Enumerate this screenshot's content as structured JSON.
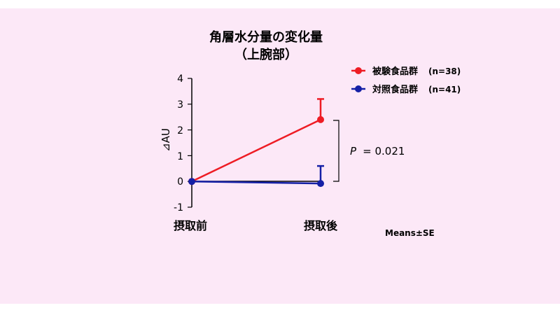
{
  "chart_data": {
    "type": "line",
    "title": "角層水分量の変化量",
    "subtitle": "（上腕部）",
    "ylabel": "⊿AU",
    "categories": [
      "摂取前",
      "摂取後"
    ],
    "ylim": [
      -1,
      4
    ],
    "yticks": [
      "4",
      "3",
      "2",
      "1",
      "0",
      "-1"
    ],
    "series": [
      {
        "name": "被験食品群",
        "n_label": "(n=38)",
        "values": [
          0,
          2.4
        ],
        "error": [
          0,
          0.8
        ],
        "color": "#ee1c24"
      },
      {
        "name": "対照食品群",
        "n_label": "(n=41)",
        "values": [
          0,
          -0.08
        ],
        "error": [
          0,
          0.68
        ],
        "color": "#1520a6"
      }
    ],
    "annotation_p_symbol": "P",
    "annotation_p_value": "= 0.021",
    "note": "Means±SE",
    "legend_position": "top-right",
    "grid": false
  },
  "colors": {
    "background": "#fce8f7",
    "test_group": "#ee1c24",
    "control_group": "#1520a6"
  }
}
